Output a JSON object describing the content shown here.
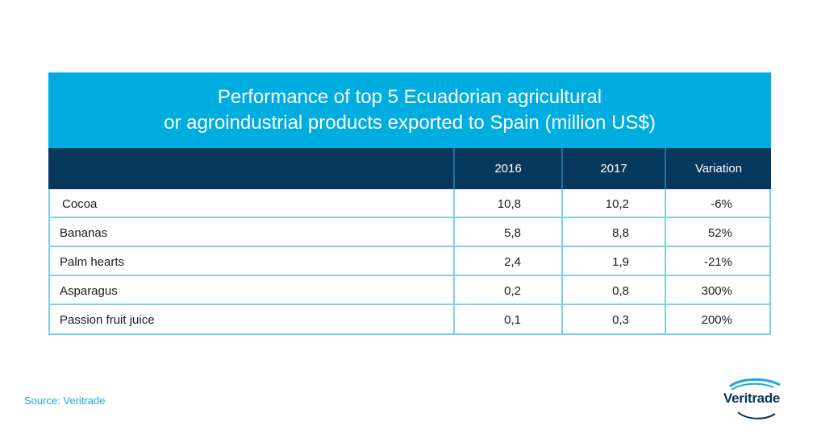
{
  "chart_data": {
    "type": "table",
    "title_lines": [
      "Performance of top 5 Ecuadorian agricultural",
      "or agroindustrial products exported to Spain (million US$)"
    ],
    "columns": [
      "",
      "2016",
      "2017",
      "Variation"
    ],
    "rows": [
      {
        "label": "Cocoa",
        "v2016": "10,8",
        "v2017": "10,2",
        "variation": "-6%"
      },
      {
        "label": "Bananas",
        "v2016": "5,8",
        "v2017": "8,8",
        "variation": "52%"
      },
      {
        "label": "Palm hearts",
        "v2016": "2,4",
        "v2017": "1,9",
        "variation": "-21%"
      },
      {
        "label": "Asparagus",
        "v2016": "0,2",
        "v2017": "0,8",
        "variation": "300%"
      },
      {
        "label": "Passion fruit juice",
        "v2016": "0,1",
        "v2017": "0,3",
        "variation": "200%"
      }
    ],
    "values_2016": [
      10.8,
      5.8,
      2.4,
      0.2,
      0.1
    ],
    "values_2017": [
      10.2,
      8.8,
      1.9,
      0.8,
      0.3
    ],
    "variation_pct": [
      -6,
      52,
      -21,
      300,
      200
    ]
  },
  "source": "Source: Veritrade",
  "logo": {
    "text": "Veritrade",
    "icon": "veritrade-swoosh-icon"
  },
  "colors": {
    "title_band": "#00ade1",
    "header_band": "#06375c",
    "grid": "#7fd0e8",
    "source_text": "#1ea7da"
  }
}
